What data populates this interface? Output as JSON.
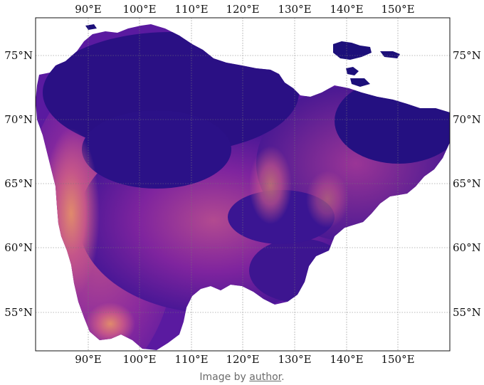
{
  "map": {
    "type": "raster",
    "colormap": "plasma",
    "colors": {
      "background": "#ffffff",
      "low": "#1a0f7a",
      "mid": "#6a1fa0",
      "high": "#c04a8a",
      "peak": "#e0866a"
    },
    "lon_ticks": [
      "90°E",
      "100°E",
      "110°E",
      "120°E",
      "130°E",
      "140°E",
      "150°E"
    ],
    "lat_ticks": [
      "75°N",
      "70°N",
      "65°N",
      "60°N",
      "55°N"
    ],
    "extent": {
      "lon": [
        80,
        160
      ],
      "lat": [
        52,
        78
      ]
    },
    "gridlines": true
  },
  "caption": {
    "prefix": "Image by ",
    "link": "author",
    "suffix": "."
  }
}
